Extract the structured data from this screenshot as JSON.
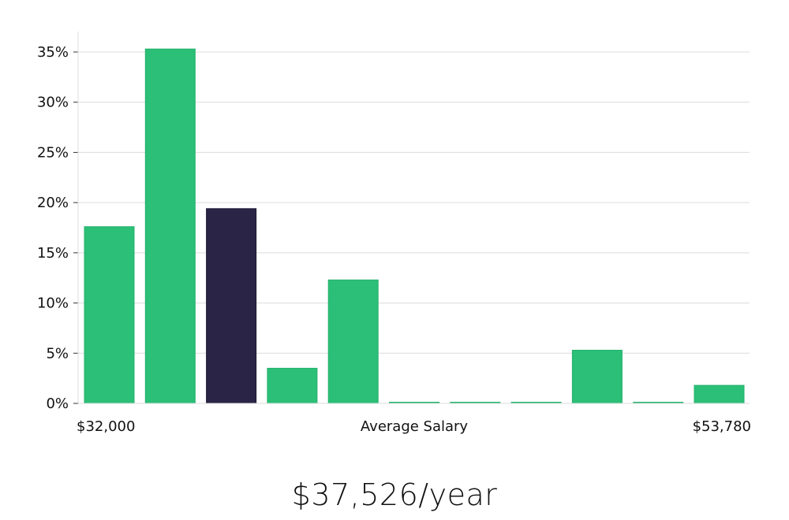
{
  "chart_data": {
    "type": "bar",
    "title": "",
    "xlabel": "Average Salary",
    "ylabel": "",
    "x_min_label": "$32,000",
    "x_max_label": "$53,780",
    "ylim": [
      0,
      37
    ],
    "y_ticks": [
      0,
      5,
      10,
      15,
      20,
      25,
      30,
      35
    ],
    "y_tick_labels": [
      "0%",
      "5%",
      "10%",
      "15%",
      "20%",
      "25%",
      "30%",
      "35%"
    ],
    "grid": true,
    "values": [
      17.6,
      35.3,
      19.4,
      3.5,
      12.3,
      0.1,
      0.1,
      0.1,
      5.3,
      0.1,
      1.8
    ],
    "highlight_index": 2,
    "bar_color": "#2bbf77",
    "highlight_color": "#2a2546"
  },
  "summary": {
    "salary_text": "$37,526/year"
  }
}
